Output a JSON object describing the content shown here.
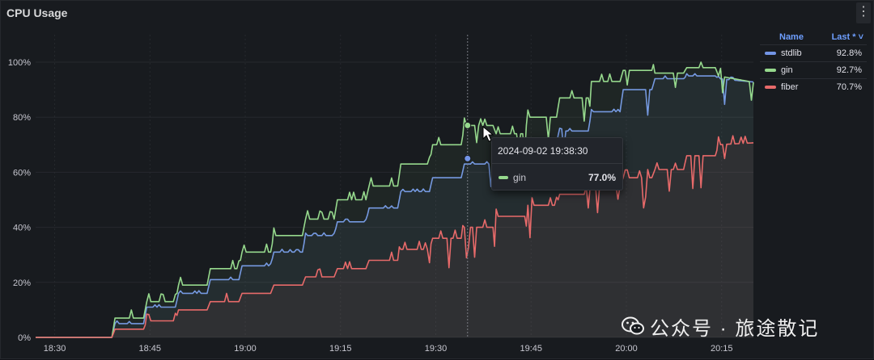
{
  "panel": {
    "title": "CPU Usage",
    "menu_icon": "kebab-menu-icon"
  },
  "legend": {
    "col_name": "Name",
    "col_last": "Last * ˅",
    "rows": [
      {
        "name": "stdlib",
        "last": "92.8%",
        "color": "#7395e6"
      },
      {
        "name": "gin",
        "last": "92.7%",
        "color": "#96d98d"
      },
      {
        "name": "fiber",
        "last": "70.7%",
        "color": "#e86a6a"
      }
    ]
  },
  "tooltip": {
    "time": "2024-09-02 19:38:30",
    "series": "gin",
    "value": "77.0%",
    "color": "#96d98d"
  },
  "watermark": {
    "text": "公众号 · 旅途散记",
    "icon": "wechat-icon"
  },
  "chart_data": {
    "type": "line",
    "title": "CPU Usage",
    "x_ticks": [
      "18:30",
      "18:45",
      "19:00",
      "19:15",
      "19:30",
      "19:45",
      "20:00",
      "20:15"
    ],
    "y_ticks": [
      "0%",
      "20%",
      "40%",
      "60%",
      "80%",
      "100%"
    ],
    "ylim": [
      0,
      100
    ],
    "x_unit": "minutes after 18:30",
    "xlim": [
      0,
      113
    ],
    "grid": true,
    "legend_position": "right",
    "series": [
      {
        "name": "stdlib",
        "color": "#7395e6",
        "x": [
          0,
          12,
          12.5,
          17,
          17.5,
          22,
          22.5,
          27,
          27.5,
          32,
          32.5,
          37,
          37.5,
          42,
          42.5,
          47,
          47.5,
          52,
          52.5,
          57,
          57.5,
          62,
          62.5,
          67,
          67.5,
          72,
          72.5,
          77,
          77.5,
          82,
          82.5,
          87,
          87.5,
          92,
          92.5,
          97,
          97.5,
          102,
          102.5,
          107,
          107.5,
          113
        ],
        "y": [
          0,
          0,
          5,
          5,
          11,
          11,
          16,
          16,
          21,
          21,
          26,
          26,
          31,
          31,
          37,
          37,
          42,
          42,
          47,
          47,
          53,
          53,
          58,
          58,
          63,
          63,
          65,
          65,
          70,
          70,
          75,
          75,
          82,
          82,
          90,
          90,
          94,
          94,
          95,
          95,
          94,
          92.8
        ]
      },
      {
        "name": "gin",
        "color": "#96d98d",
        "x": [
          0,
          12,
          12.5,
          17,
          17.5,
          22,
          22.5,
          27,
          27.5,
          32,
          32.5,
          37,
          37.5,
          42,
          42.5,
          47,
          47.5,
          52,
          52.5,
          57,
          57.5,
          62,
          62.5,
          67,
          67.5,
          72,
          72.5,
          77,
          77.5,
          82,
          82.5,
          87,
          87.5,
          92,
          92.5,
          97,
          97.5,
          102,
          102.5,
          107,
          107.5,
          113
        ],
        "y": [
          0,
          0,
          7,
          7,
          13,
          13,
          19,
          19,
          25,
          25,
          31,
          31,
          37,
          37,
          43,
          43,
          50,
          50,
          55,
          55,
          63,
          63,
          70,
          70,
          77,
          77,
          74,
          74,
          80,
          80,
          87,
          87,
          93,
          93,
          97,
          97,
          96,
          96,
          98,
          98,
          95,
          92.7
        ]
      },
      {
        "name": "fiber",
        "color": "#e86a6a",
        "x": [
          0,
          12,
          12.5,
          17,
          17.5,
          22,
          22.5,
          27,
          27.5,
          32,
          32.5,
          37,
          37.5,
          42,
          42.5,
          47,
          47.5,
          52,
          52.5,
          57,
          57.5,
          62,
          62.5,
          67,
          67.5,
          72,
          72.5,
          77,
          77.5,
          82,
          82.5,
          87,
          87.5,
          92,
          92.5,
          97,
          97.5,
          102,
          102.5,
          107,
          107.5,
          113
        ],
        "y": [
          0,
          0,
          3,
          3,
          6,
          6,
          10,
          10,
          13,
          13,
          16,
          16,
          19,
          19,
          22,
          22,
          25,
          25,
          28,
          28,
          32,
          32,
          36,
          36,
          40,
          40,
          44,
          44,
          48,
          48,
          52,
          52,
          55,
          55,
          58,
          58,
          61,
          61,
          66,
          66,
          70,
          70.7
        ]
      }
    ]
  }
}
